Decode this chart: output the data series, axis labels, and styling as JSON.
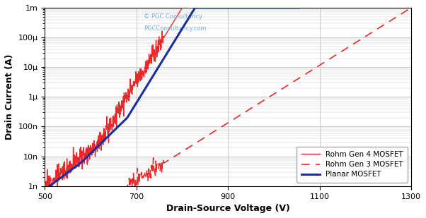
{
  "title": "",
  "xlabel": "Drain-Source Voltage (V)",
  "ylabel": "Drain Current (A)",
  "xlim": [
    500,
    1300
  ],
  "ylim_log": [
    1e-09,
    0.001
  ],
  "xticks": [
    500,
    700,
    900,
    1100,
    1300
  ],
  "watermark_line1": "© PGC Consultancy",
  "watermark_line2": "PGCConsultancy.com",
  "legend": [
    "Rohm Gen 4 MOSFET",
    "Rohm Gen 3 MOSFET",
    "Planar MOSFET"
  ],
  "color_red": "#e8292a",
  "color_blue": "#1a2f9e",
  "bg_color": "#ffffff",
  "grid_color": "#c8c8c8"
}
